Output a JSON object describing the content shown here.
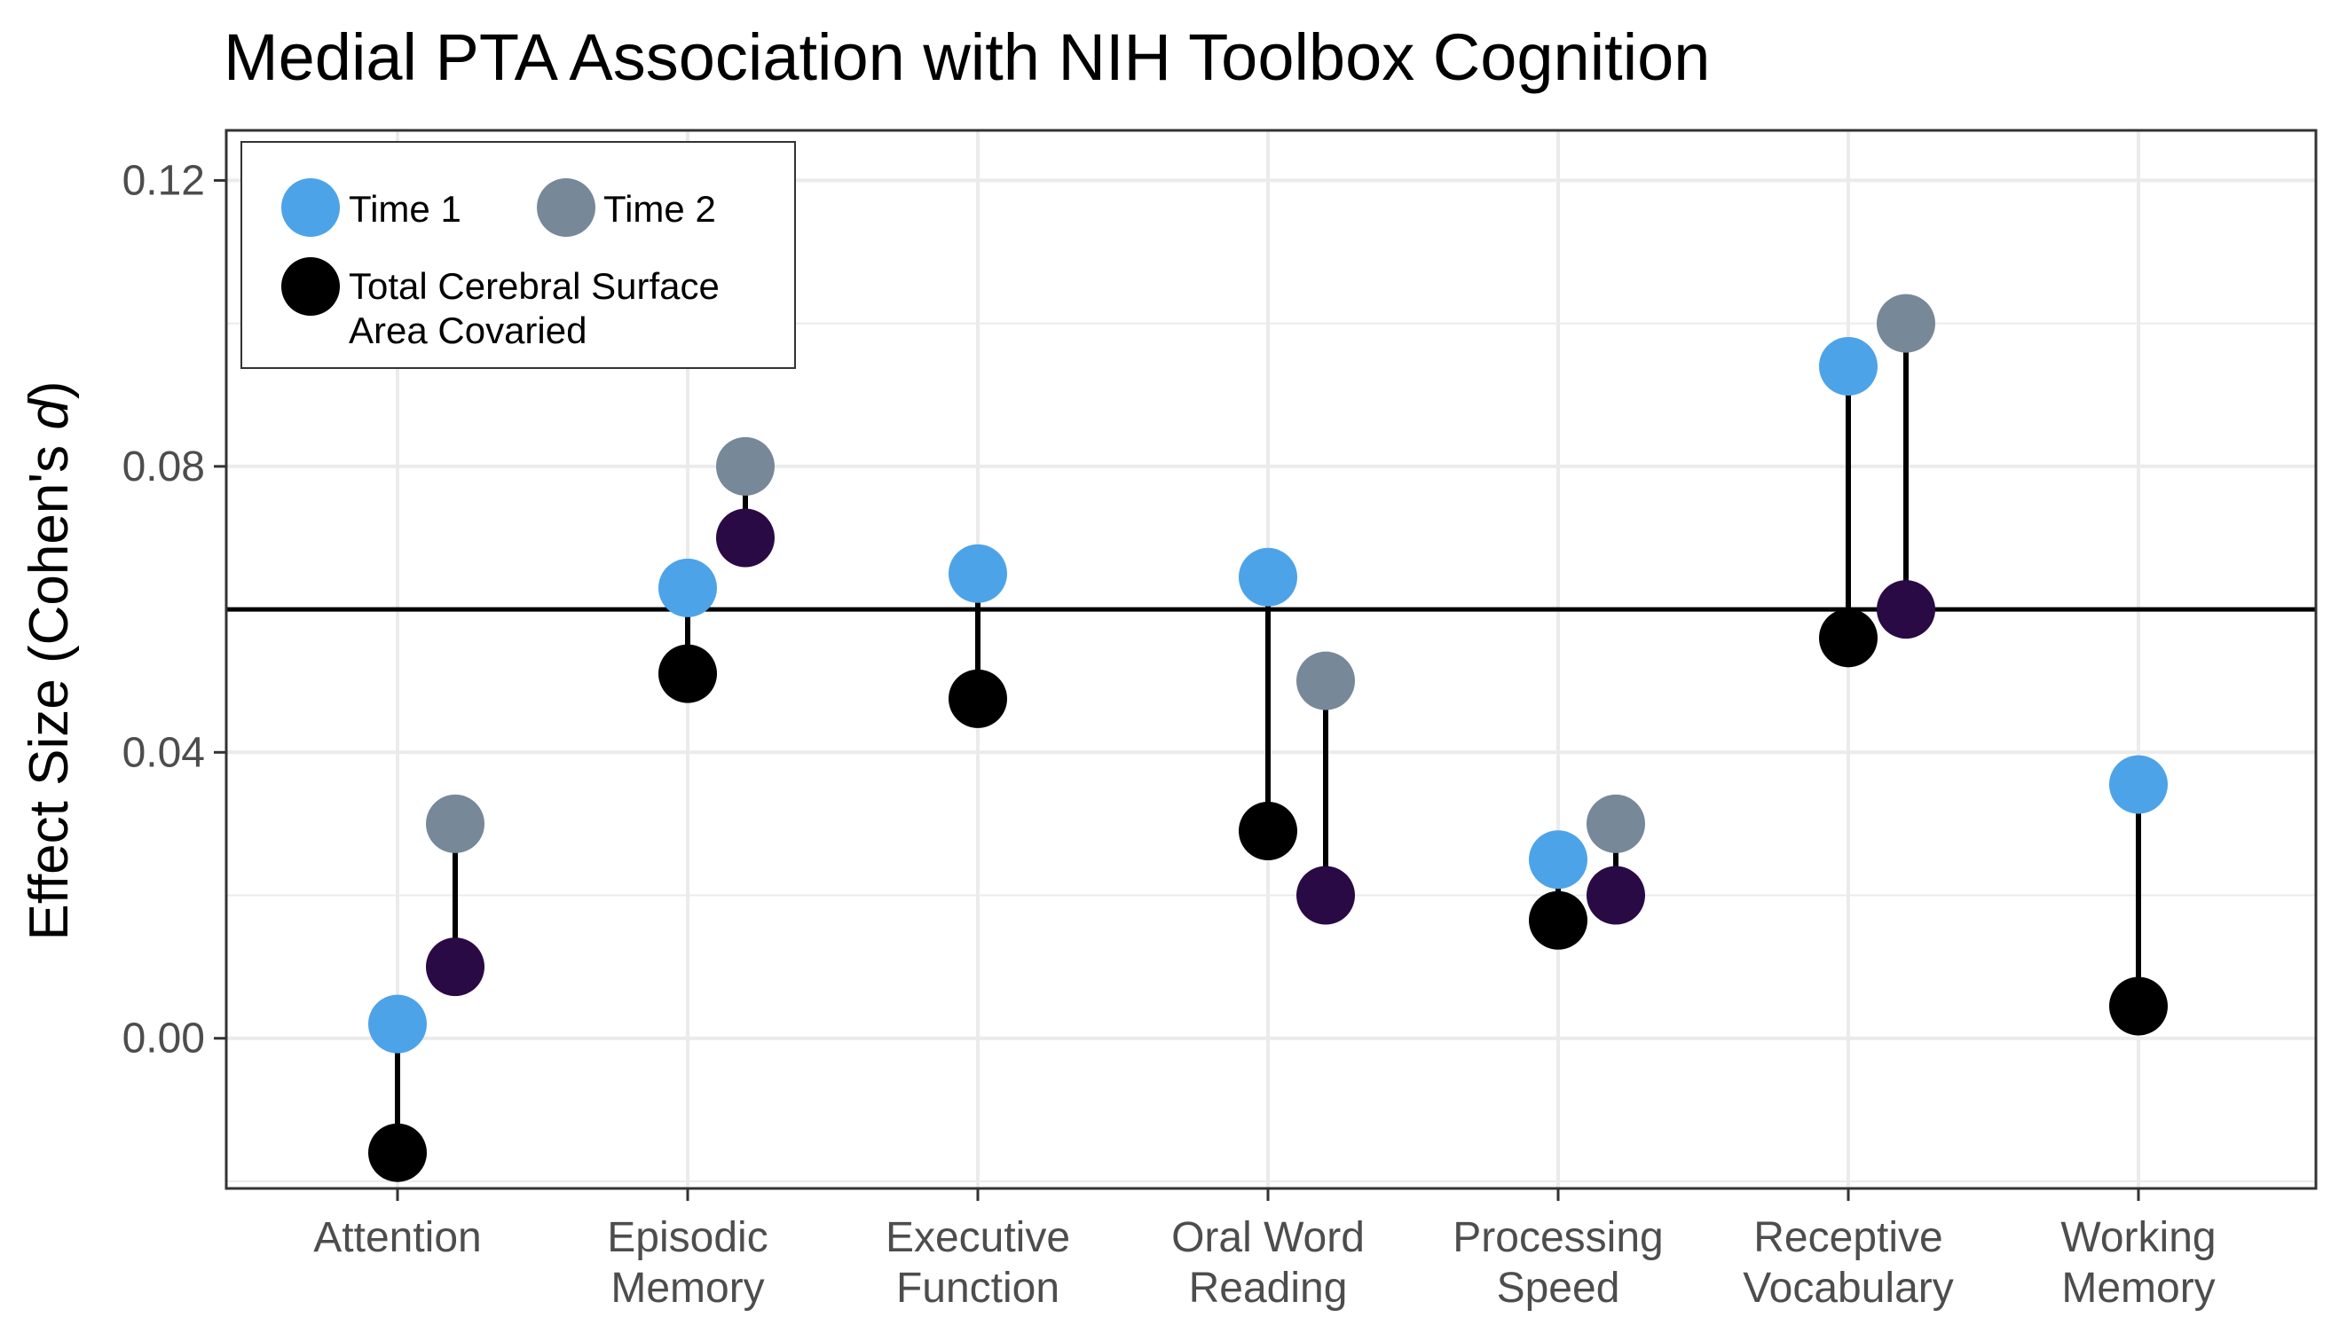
{
  "chart_data": {
    "type": "scatter",
    "title": "Medial PTA Association with NIH Toolbox Cognition",
    "ylabel": "Effect Size (Cohen's ",
    "ylabel_italic": "d",
    "ylabel_end": ")",
    "xlabel": "",
    "ylim": [
      -0.021,
      0.127
    ],
    "yticks": [
      0.0,
      0.04,
      0.08,
      0.12
    ],
    "ytick_labels": [
      "0.00",
      "0.04",
      "0.08",
      "0.12"
    ],
    "grid": true,
    "categories": [
      [
        "Attention"
      ],
      [
        "Episodic",
        "Memory"
      ],
      [
        "Executive",
        "Function"
      ],
      [
        "Oral Word",
        "Reading"
      ],
      [
        "Processing",
        "Speed"
      ],
      [
        "Receptive",
        "Vocabulary"
      ],
      [
        "Working",
        "Memory"
      ]
    ],
    "reference_line": 0.06,
    "series": [
      {
        "name": "Time 1",
        "color": "#4da3e8",
        "values": [
          0.002,
          0.063,
          0.065,
          0.0645,
          0.025,
          0.094,
          0.0355
        ]
      },
      {
        "name": "Time 1 (Total Cerebral Surface Area Covaried)",
        "color": "#000000",
        "values": [
          -0.016,
          0.051,
          0.0475,
          0.029,
          0.0165,
          0.056,
          0.0045
        ]
      },
      {
        "name": "Time 2",
        "color": "#778899",
        "values": [
          0.03,
          0.08,
          null,
          0.05,
          0.03,
          0.1,
          null
        ]
      },
      {
        "name": "Time 2 (Total Cerebral Surface Area Covaried)",
        "color": "#2a0a45",
        "values": [
          0.01,
          0.07,
          null,
          0.02,
          0.02,
          0.06,
          null
        ]
      }
    ],
    "legend": {
      "position": "top-left",
      "items": [
        {
          "label": "Time 1",
          "color": "#4da3e8"
        },
        {
          "label": "Time 2",
          "color": "#778899"
        },
        {
          "label_lines": [
            "Total Cerebral Surface",
            "Area Covaried"
          ],
          "color": "#000000"
        }
      ]
    }
  }
}
